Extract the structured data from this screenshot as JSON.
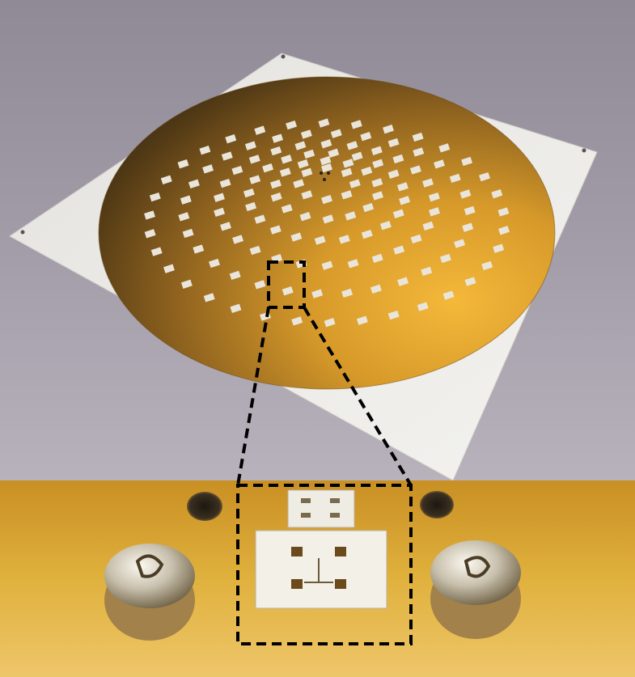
{
  "figure": {
    "top_photo": {
      "subject": "circular-gold-antenna-array-on-white-square-substrate",
      "background_color": "#9b95a1",
      "substrate_color": "#ecebe6",
      "disc_gold_dark": "#4f3914",
      "disc_gold_mid": "#b07a22",
      "disc_gold_light": "#f0b232",
      "element_color": "#e9e5db"
    },
    "bottom_photo": {
      "subject": "close-up-of-single-array-element-with-screws",
      "background_gold": "#d9a733",
      "chip_color": "#f2efe6",
      "screw_color": "#c8c1b3"
    },
    "callout": {
      "style": "dashed-zoom-box",
      "line_color": "#000000"
    }
  }
}
